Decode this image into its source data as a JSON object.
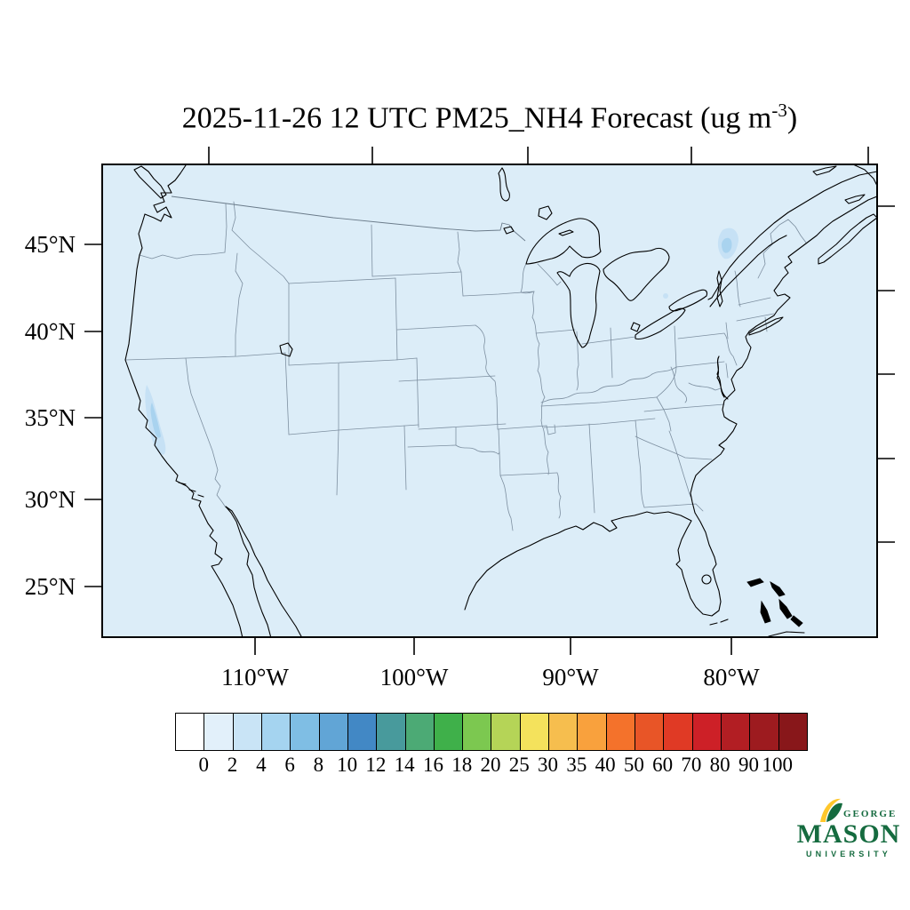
{
  "title": {
    "prefix": "2025-11-26 12 UTC PM25_NH4 Forecast (ug m",
    "exponent": "-3",
    "close": ")"
  },
  "map": {
    "background": "#dcedf8",
    "coast_color": "#000000",
    "state_line_color": "#7d8fa0",
    "patch_light": "#c6e1f5",
    "patch_mid": "#a9d3ef",
    "lat_labels": [
      "45°N",
      "40°N",
      "35°N",
      "30°N",
      "25°N"
    ],
    "lon_labels": [
      "110°W",
      "100°W",
      "90°W",
      "80°W"
    ]
  },
  "colorbar": {
    "values": [
      "0",
      "2",
      "4",
      "6",
      "8",
      "10",
      "12",
      "14",
      "16",
      "18",
      "20",
      "25",
      "30",
      "35",
      "40",
      "50",
      "60",
      "70",
      "80",
      "90",
      "100"
    ],
    "colors": [
      "#ffffff",
      "#e2f0fa",
      "#c9e4f6",
      "#a5d4f0",
      "#7fbee4",
      "#61a5d6",
      "#4288c5",
      "#489a9c",
      "#4caa75",
      "#3fb04a",
      "#7cc850",
      "#b5d457",
      "#f4e25c",
      "#f6be4e",
      "#f9a13d",
      "#f4722b",
      "#e85527",
      "#e03a25",
      "#cd2027",
      "#b21e23",
      "#9d1b1f",
      "#88171a"
    ]
  },
  "logo": {
    "line1": "GEORGE",
    "line2": "MASON",
    "line3": "UNIVERSITY",
    "green": "#156b3f",
    "gold": "#ffc72c"
  },
  "chart_data": {
    "type": "heatmap",
    "title": "2025-11-26 12 UTC PM25_NH4 Forecast (ug m-3)",
    "variable": "PM25_NH4",
    "units": "ug m-3",
    "x_ticks": [
      "110°W",
      "100°W",
      "90°W",
      "80°W"
    ],
    "y_ticks": [
      "45°N",
      "40°N",
      "35°N",
      "30°N",
      "25°N"
    ],
    "colorbar_levels": [
      0,
      2,
      4,
      6,
      8,
      10,
      12,
      14,
      16,
      18,
      20,
      25,
      30,
      35,
      40,
      50,
      60,
      70,
      80,
      90,
      100
    ],
    "colorbar_colors": [
      "#ffffff",
      "#e2f0fa",
      "#c9e4f6",
      "#a5d4f0",
      "#7fbee4",
      "#61a5d6",
      "#4288c5",
      "#489a9c",
      "#4caa75",
      "#3fb04a",
      "#7cc850",
      "#b5d457",
      "#f4e25c",
      "#f6be4e",
      "#f9a13d",
      "#f4722b",
      "#e85527",
      "#e03a25",
      "#cd2027",
      "#b21e23",
      "#9d1b1f",
      "#88171a"
    ],
    "legend_position": "bottom",
    "grid": false,
    "field_summary": [
      {
        "region": "most of the CONUS domain",
        "value_ug_m3": "< 2"
      },
      {
        "region": "California Central Valley",
        "value_ug_m3": "2-6"
      },
      {
        "region": "northern New York / Adirondacks",
        "value_ug_m3": "2-4"
      }
    ]
  }
}
